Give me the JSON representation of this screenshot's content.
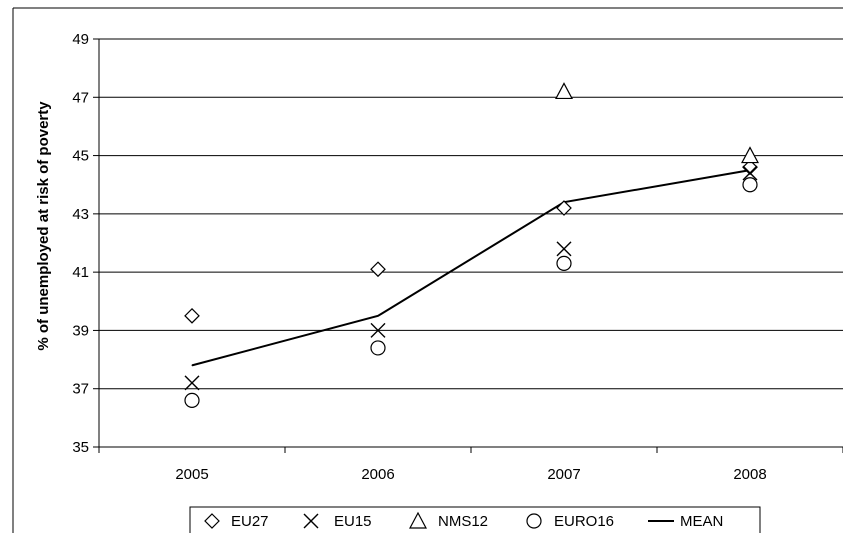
{
  "chart_data": {
    "type": "scatter",
    "title": "",
    "xlabel": "",
    "ylabel": "% of unemployed at risk of poverty",
    "categories": [
      "2005",
      "2006",
      "2007",
      "2008"
    ],
    "ylim": [
      35,
      49
    ],
    "yticks": [
      35,
      37,
      39,
      41,
      43,
      45,
      47,
      49
    ],
    "grid": "horizontal",
    "legend_position": "bottom",
    "series": [
      {
        "name": "EU27",
        "marker": "diamond",
        "values": [
          39.5,
          41.1,
          43.2,
          44.6
        ]
      },
      {
        "name": "EU15",
        "marker": "x",
        "values": [
          37.2,
          39.0,
          41.8,
          44.4
        ]
      },
      {
        "name": "NMS12",
        "marker": "triangle",
        "values": [
          null,
          null,
          47.2,
          45.0
        ]
      },
      {
        "name": "EURO16",
        "marker": "circle",
        "values": [
          36.6,
          38.4,
          41.3,
          44.0
        ]
      },
      {
        "name": "MEAN",
        "marker": "line",
        "values": [
          37.8,
          39.5,
          43.4,
          44.5
        ]
      }
    ],
    "colors": {
      "ink": "#000000",
      "grid": "#000000",
      "background": "#ffffff"
    }
  }
}
